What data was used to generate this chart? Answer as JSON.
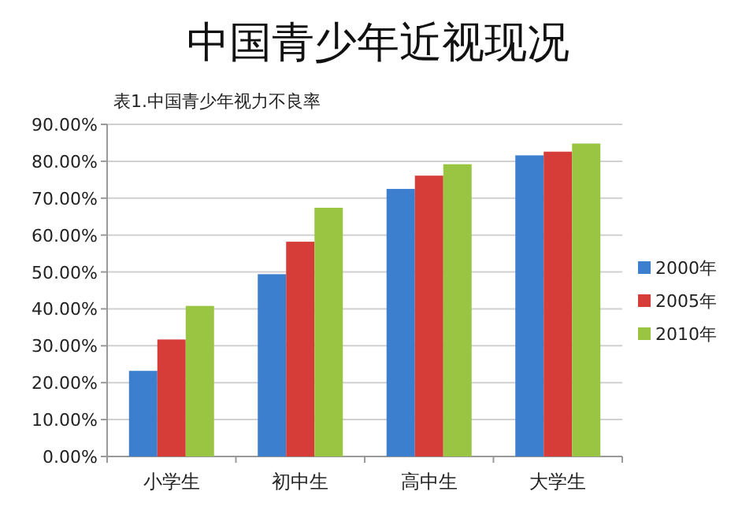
{
  "chart_data": {
    "type": "bar",
    "title": "中国青少年近视现况",
    "subtitle": "表1.中国青少年视力不良率",
    "categories": [
      "小学生",
      "初中生",
      "高中生",
      "大学生"
    ],
    "series": [
      {
        "name": "2000年",
        "color": "#3d7fcf",
        "values": [
          23.2,
          49.4,
          72.5,
          81.6
        ]
      },
      {
        "name": "2005年",
        "color": "#d63c38",
        "values": [
          31.7,
          58.2,
          76.1,
          82.6
        ]
      },
      {
        "name": "2010年",
        "color": "#9ac543",
        "values": [
          40.8,
          67.4,
          79.2,
          84.8
        ]
      }
    ],
    "ylim": [
      0,
      90
    ],
    "yticks": [
      {
        "value": 0,
        "label": "0.00%"
      },
      {
        "value": 10,
        "label": "10.00%"
      },
      {
        "value": 20,
        "label": "20.00%"
      },
      {
        "value": 30,
        "label": "30.00%"
      },
      {
        "value": 40,
        "label": "40.00%"
      },
      {
        "value": 50,
        "label": "50.00%"
      },
      {
        "value": 60,
        "label": "60.00%"
      },
      {
        "value": 70,
        "label": "70.00%"
      },
      {
        "value": 80,
        "label": "80.00%"
      },
      {
        "value": 90,
        "label": "90.00%"
      }
    ],
    "grid": "y",
    "legend": "right"
  }
}
